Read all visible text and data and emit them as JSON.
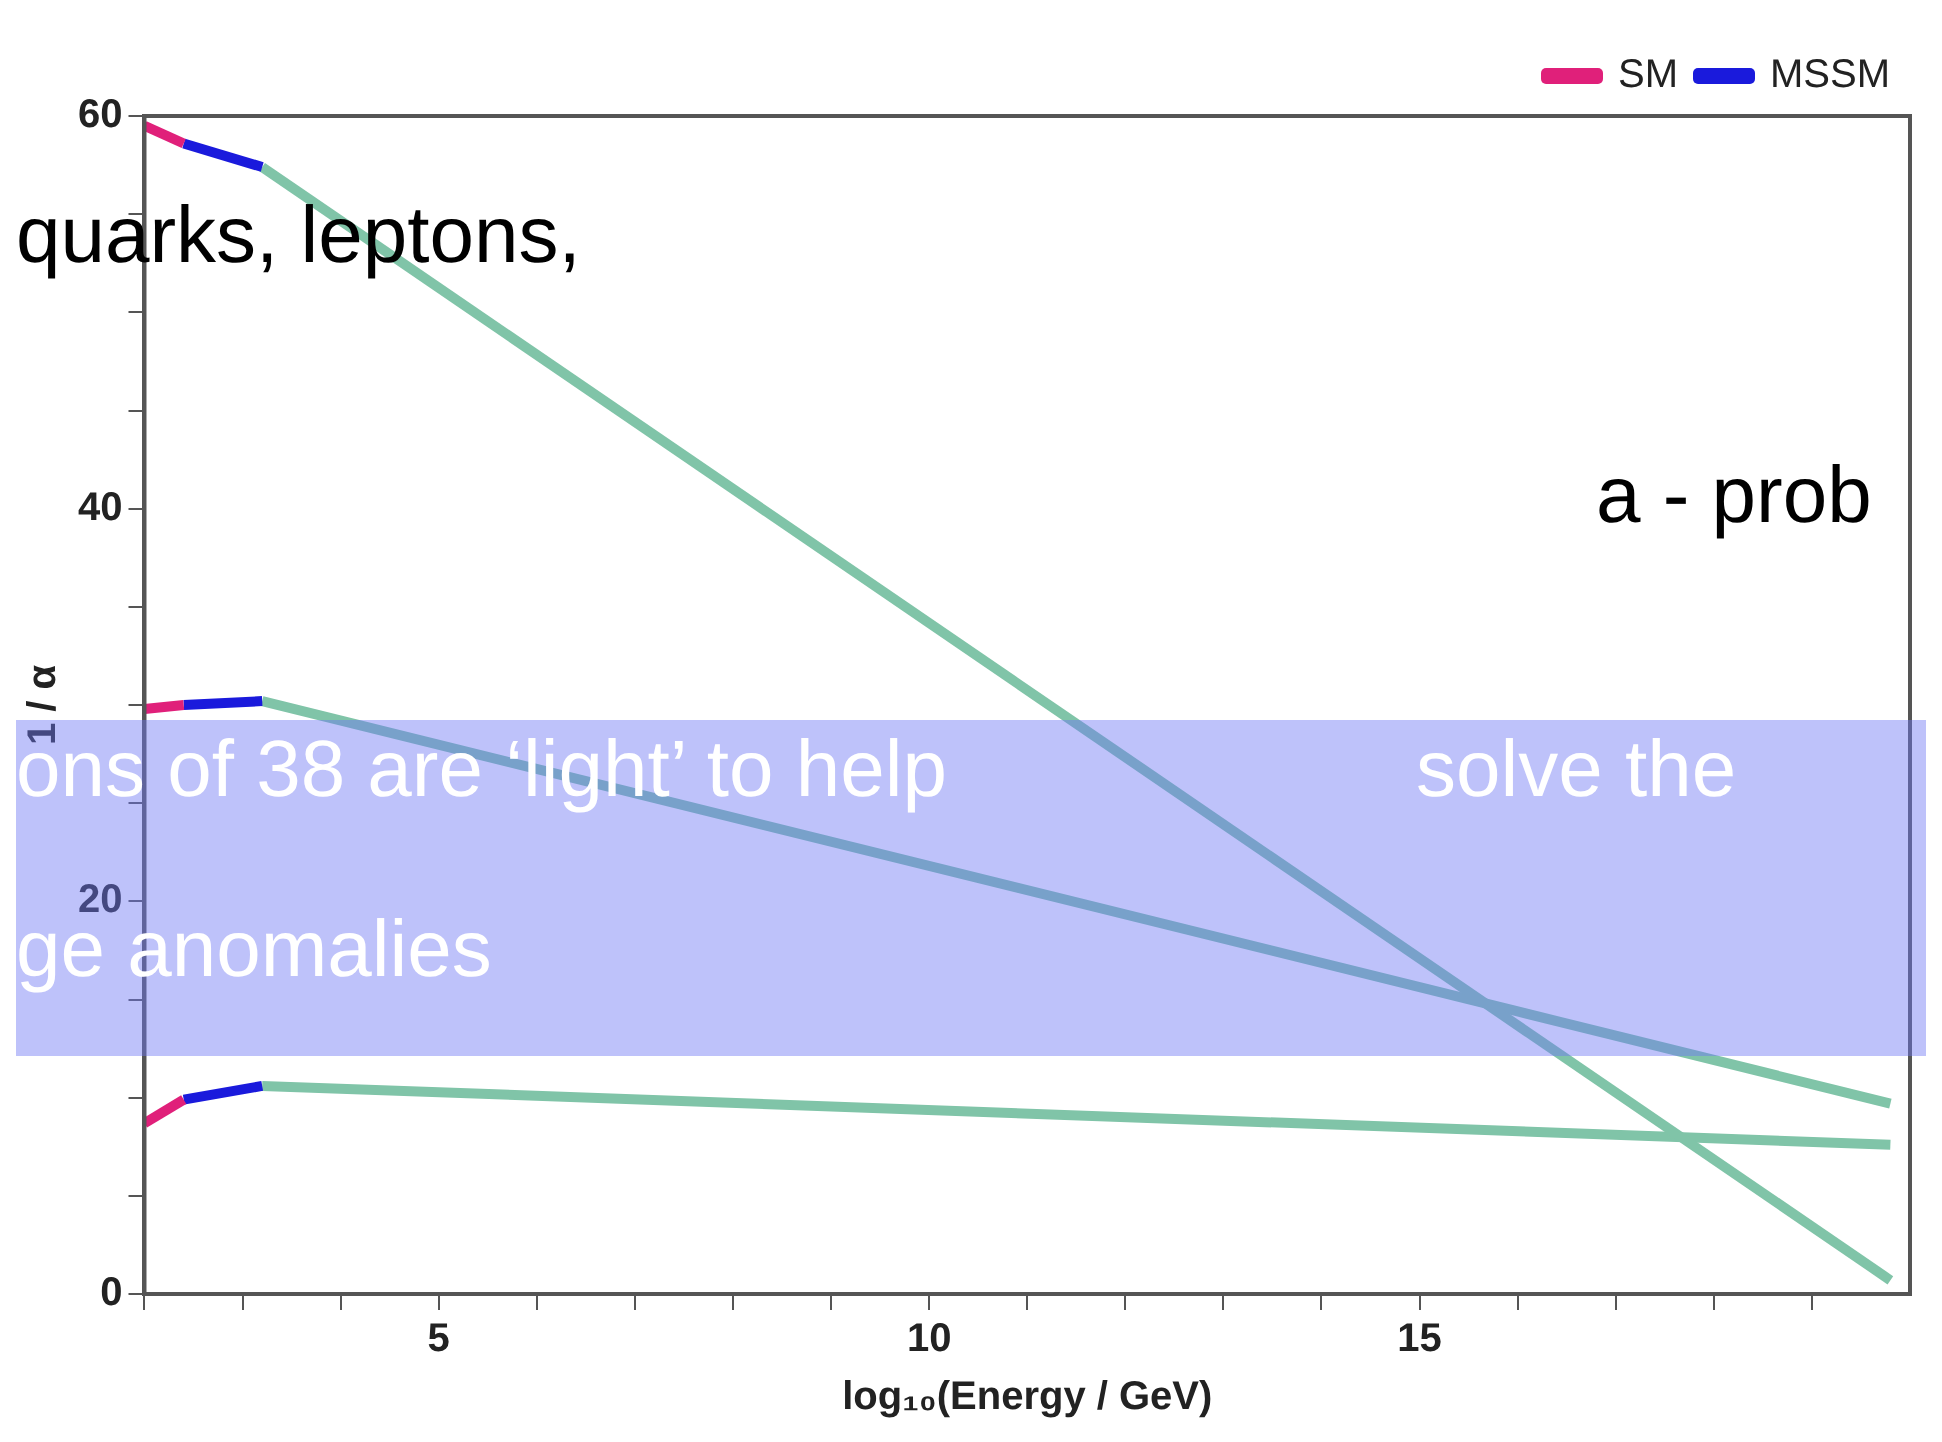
{
  "chart_data": {
    "type": "line",
    "xlabel": "log₁₀(Energy / GeV)",
    "ylabel": "1 / α",
    "xlim": [
      2,
      20
    ],
    "ylim": [
      0,
      60
    ],
    "xticks": [
      {
        "value": 2,
        "label": null
      },
      {
        "value": 3,
        "label": null
      },
      {
        "value": 4,
        "label": null
      },
      5,
      {
        "value": 6,
        "label": null
      },
      {
        "value": 7,
        "label": null
      },
      {
        "value": 8,
        "label": null
      },
      {
        "value": 9,
        "label": null
      },
      10,
      {
        "value": 11,
        "label": null
      },
      {
        "value": 12,
        "label": null
      },
      {
        "value": 13,
        "label": null
      },
      {
        "value": 14,
        "label": null
      },
      15,
      {
        "value": 16,
        "label": null
      },
      {
        "value": 17,
        "label": null
      },
      {
        "value": 18,
        "label": null
      },
      {
        "value": 19,
        "label": null
      }
    ],
    "yticks": [
      0,
      {
        "value": 5,
        "label": null
      },
      {
        "value": 10,
        "label": null
      },
      {
        "value": 15,
        "label": null
      },
      20,
      {
        "value": 25,
        "label": null
      },
      {
        "value": 30,
        "label": null
      },
      {
        "value": 35,
        "label": null
      },
      40,
      {
        "value": 45,
        "label": null
      },
      {
        "value": 50,
        "label": null
      },
      {
        "value": 55,
        "label": null
      },
      60
    ],
    "grid": false,
    "legend": "top right",
    "line_style": "solid",
    "marker": "none",
    "series": [
      {
        "name": "SM",
        "color": "#e0207a",
        "x": [
          2,
          2.4
        ],
        "values": [
          59.5,
          58.6
        ]
      },
      {
        "color": "#e0207a",
        "x": [
          2,
          2.4
        ],
        "values": [
          29.8,
          30.0
        ]
      },
      {
        "color": "#e0207a",
        "x": [
          2,
          2.4
        ],
        "values": [
          8.7,
          9.9
        ]
      },
      {
        "name": "MSSM",
        "color": "#1a1adc",
        "x": [
          2.4,
          3.2
        ],
        "values": [
          58.6,
          57.4
        ]
      },
      {
        "color": "#1a1adc",
        "x": [
          2.4,
          3.2
        ],
        "values": [
          30.0,
          30.2
        ]
      },
      {
        "color": "#1a1adc",
        "x": [
          2.4,
          3.2
        ],
        "values": [
          9.9,
          10.6
        ]
      },
      {
        "color": "#80c4a8",
        "x": [
          3.2,
          19.8
        ],
        "values": [
          57.4,
          0.7
        ]
      },
      {
        "color": "#80c4a8",
        "x": [
          3.2,
          19.8
        ],
        "values": [
          30.2,
          9.7
        ]
      },
      {
        "color": "#80c4a8",
        "x": [
          3.2,
          19.8
        ],
        "values": [
          10.6,
          7.6
        ]
      }
    ],
    "annotations": [
      "quarks, leptons,",
      "a - prob",
      "ons of 38 are ‘light’ to help",
      "solve the",
      "ge anomalies"
    ]
  }
}
